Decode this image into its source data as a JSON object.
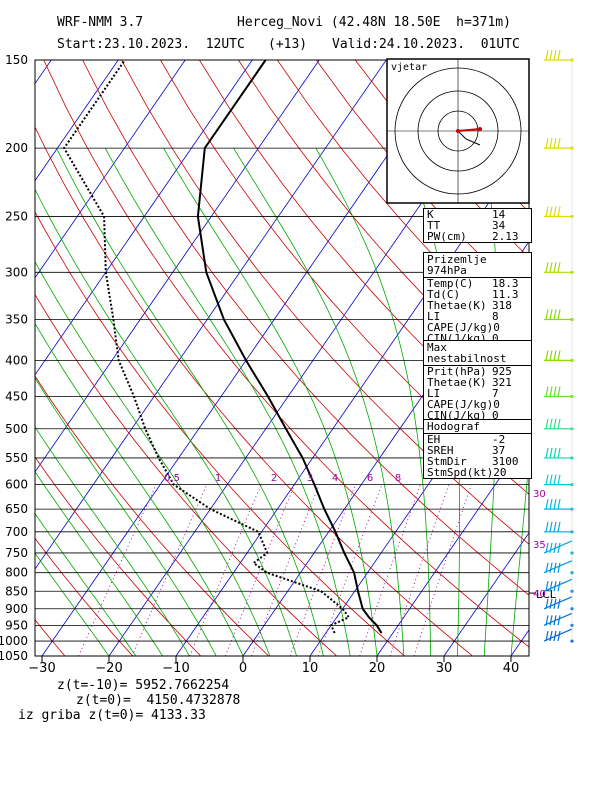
{
  "header": {
    "model": "WRF-NMM 3.7",
    "station": "Herceg_Novi (42.48N 18.50E  h=371m)",
    "start": "Start:23.10.2023.  12UTC",
    "step": "(+13)",
    "valid": "Valid:24.10.2023.  01UTC"
  },
  "hodograph_inset": {
    "label": "vjetar"
  },
  "indices_box": {
    "rows": [
      {
        "name": "K",
        "value": "14"
      },
      {
        "name": "TT",
        "value": "34"
      },
      {
        "name": "PW(cm)",
        "value": "2.13"
      }
    ]
  },
  "surface_box": {
    "title": "Prizemlje 974hPa",
    "rows": [
      {
        "name": "Temp(C)",
        "value": "18.3"
      },
      {
        "name": "Td(C)",
        "value": "11.3"
      },
      {
        "name": "Thetae(K)",
        "value": "318"
      },
      {
        "name": "LI",
        "value": "8"
      },
      {
        "name": "CAPE(J/kg)",
        "value": "0"
      },
      {
        "name": "CIN(J/kg)",
        "value": "0"
      }
    ]
  },
  "max_box": {
    "title": "Max nestabilnost",
    "rows": [
      {
        "name": "Prit(hPa)",
        "value": "925"
      },
      {
        "name": "Thetae(K)",
        "value": "321"
      },
      {
        "name": "LI",
        "value": "7"
      },
      {
        "name": "CAPE(J/kg)",
        "value": "0"
      },
      {
        "name": "CIN(J/kg)",
        "value": "0"
      }
    ]
  },
  "hodograf_box": {
    "title": "Hodograf",
    "rows": [
      {
        "name": "EH",
        "value": "-2"
      },
      {
        "name": "SREH",
        "value": "37"
      },
      {
        "name": "StmDir",
        "value": "3100"
      },
      {
        "name": "StmSpd(kt)",
        "value": "20"
      }
    ]
  },
  "footer": {
    "line1": "z(t=-10)= 5952.7662254",
    "line2": "z(t=0)=  4150.4732878",
    "line3": "iz griba z(t=0)= 4133.33"
  },
  "chart_data": {
    "type": "line",
    "pressure_levels": [
      150,
      200,
      250,
      300,
      350,
      400,
      450,
      500,
      550,
      600,
      650,
      700,
      750,
      800,
      850,
      900,
      950,
      1000,
      1050
    ],
    "x_ticks": [
      -30,
      -20,
      -10,
      0,
      10,
      20,
      30,
      40
    ],
    "xlim": [
      -30,
      42
    ],
    "ylim": [
      1050,
      150
    ],
    "mixing_ratio_labels": [
      "0.5",
      "1",
      "2",
      "3",
      "4",
      "6",
      "8"
    ],
    "wind_speed_labels": [
      "30",
      "35",
      "40"
    ],
    "lcl_label": "LCL",
    "lcl_pressure": 855,
    "series": [
      {
        "name": "temperature",
        "points": [
          [
            974,
            18.3
          ],
          [
            950,
            16.8
          ],
          [
            925,
            14.8
          ],
          [
            900,
            13.0
          ],
          [
            850,
            10.5
          ],
          [
            800,
            8.0
          ],
          [
            750,
            4.5
          ],
          [
            700,
            1.0
          ],
          [
            650,
            -3.0
          ],
          [
            600,
            -7.0
          ],
          [
            550,
            -11.5
          ],
          [
            500,
            -17.0
          ],
          [
            450,
            -23.0
          ],
          [
            400,
            -30.0
          ],
          [
            350,
            -37.5
          ],
          [
            300,
            -45.0
          ],
          [
            250,
            -52.0
          ],
          [
            200,
            -58.0
          ],
          [
            150,
            -58.0
          ]
        ]
      },
      {
        "name": "dewpoint",
        "points": [
          [
            974,
            11.3
          ],
          [
            950,
            10.0
          ],
          [
            925,
            11.8
          ],
          [
            900,
            10.0
          ],
          [
            850,
            5.0
          ],
          [
            800,
            -5.0
          ],
          [
            775,
            -8.0
          ],
          [
            750,
            -7.0
          ],
          [
            700,
            -10.5
          ],
          [
            650,
            -20.0
          ],
          [
            600,
            -28.0
          ],
          [
            550,
            -33.0
          ],
          [
            500,
            -38.0
          ],
          [
            450,
            -43.0
          ],
          [
            400,
            -49.0
          ],
          [
            350,
            -54.0
          ],
          [
            300,
            -60.0
          ],
          [
            250,
            -66.0
          ],
          [
            200,
            -79.0
          ],
          [
            150,
            -79.0
          ]
        ]
      }
    ],
    "wind_barbs_pressure": [
      150,
      200,
      250,
      300,
      350,
      400,
      450,
      500,
      550,
      600,
      650,
      700,
      750,
      800,
      850,
      900,
      950,
      1000
    ]
  },
  "colors": {
    "temp": "#000000",
    "dry_adiabat": "#cc0000",
    "moist_adiabat": "#00aa00",
    "isotherm": "#0000cc",
    "mixing": "#a000a0",
    "barb": "#00aadd"
  }
}
